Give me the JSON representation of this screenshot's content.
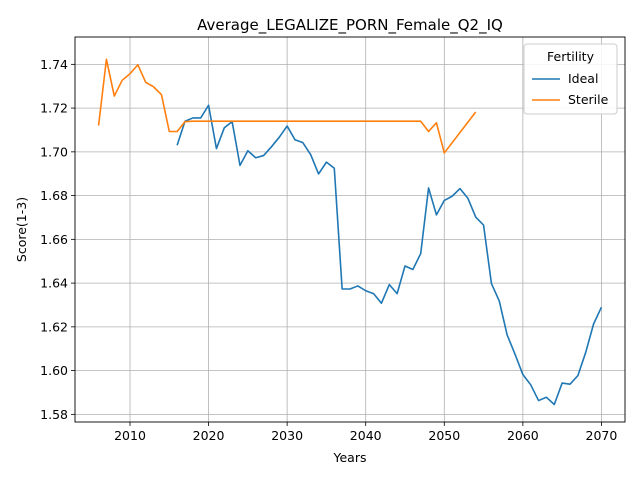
{
  "chart_data": {
    "type": "line",
    "title": "Average_LEGALIZE_PORN_Female_Q2_IQ",
    "xlabel": "Years",
    "ylabel": "Score(1-3)",
    "xlim": [
      2003,
      2073
    ],
    "ylim": [
      1.5765,
      1.7525
    ],
    "xticks": [
      2010,
      2020,
      2030,
      2040,
      2050,
      2060,
      2070
    ],
    "yticks": [
      1.58,
      1.6,
      1.62,
      1.64,
      1.66,
      1.68,
      1.7,
      1.72,
      1.74
    ],
    "grid": true,
    "legend": {
      "title": "Fertility",
      "placement": "top-right"
    },
    "series": [
      {
        "name": "Ideal",
        "color": "#1f77b4",
        "x": [
          2016,
          2017,
          2018,
          2019,
          2020,
          2021,
          2022,
          2023,
          2024,
          2025,
          2026,
          2027,
          2028,
          2029,
          2030,
          2031,
          2032,
          2033,
          2034,
          2035,
          2036,
          2037,
          2038,
          2039,
          2040,
          2041,
          2042,
          2043,
          2044,
          2045,
          2046,
          2047,
          2048,
          2049,
          2050,
          2051,
          2052,
          2053,
          2054,
          2055,
          2056,
          2057,
          2058,
          2059,
          2060,
          2061,
          2062,
          2063,
          2064,
          2065,
          2066,
          2067,
          2068,
          2069,
          2070
        ],
        "y": [
          1.703,
          1.714,
          1.7155,
          1.7155,
          1.7213,
          1.7015,
          1.711,
          1.7138,
          1.6938,
          1.7005,
          1.6973,
          1.6983,
          1.7023,
          1.7067,
          1.7118,
          1.7055,
          1.7042,
          1.6987,
          1.6899,
          1.6953,
          1.6925,
          1.6373,
          1.6373,
          1.6387,
          1.6365,
          1.6352,
          1.6308,
          1.6393,
          1.6352,
          1.6478,
          1.6462,
          1.6535,
          1.6835,
          1.6712,
          1.6778,
          1.6797,
          1.6832,
          1.6788,
          1.6702,
          1.6665,
          1.6398,
          1.6318,
          1.6163,
          1.6075,
          1.5982,
          1.5935,
          1.5863,
          1.5878,
          1.5845,
          1.5943,
          1.5938,
          1.5977,
          1.6083,
          1.6213,
          1.629
        ]
      },
      {
        "name": "Sterile",
        "color": "#ff7f0e",
        "x": [
          2006,
          2007,
          2008,
          2009,
          2010,
          2011,
          2012,
          2013,
          2014,
          2015,
          2016,
          2017,
          2018,
          2019,
          2020,
          2021,
          2022,
          2023,
          2024,
          2025,
          2026,
          2027,
          2028,
          2029,
          2030,
          2031,
          2032,
          2033,
          2034,
          2035,
          2036,
          2037,
          2038,
          2039,
          2040,
          2041,
          2042,
          2043,
          2044,
          2045,
          2046,
          2047,
          2048,
          2049,
          2050,
          2054
        ],
        "y": [
          1.712,
          1.7423,
          1.7255,
          1.7327,
          1.7357,
          1.7398,
          1.7318,
          1.7297,
          1.7262,
          1.7093,
          1.7093,
          1.7138,
          1.714,
          1.714,
          1.714,
          1.714,
          1.714,
          1.714,
          1.714,
          1.714,
          1.714,
          1.714,
          1.714,
          1.714,
          1.714,
          1.714,
          1.714,
          1.714,
          1.714,
          1.714,
          1.714,
          1.714,
          1.714,
          1.714,
          1.714,
          1.714,
          1.714,
          1.714,
          1.714,
          1.714,
          1.714,
          1.714,
          1.7093,
          1.7133,
          1.6995,
          1.7182
        ]
      }
    ]
  }
}
